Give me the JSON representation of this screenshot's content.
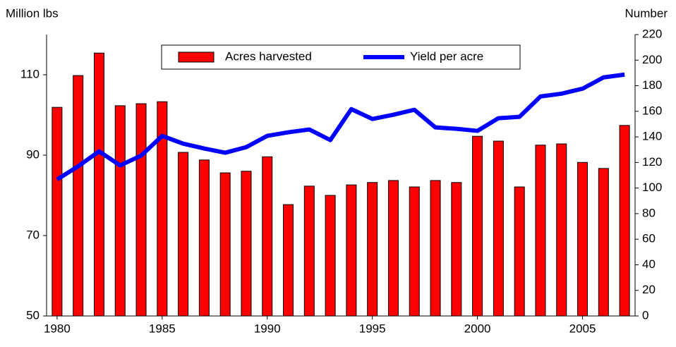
{
  "chart_data": {
    "type": "bar-line",
    "y_label": "Million lbs",
    "y2_label": "Number",
    "x": [
      1980,
      1981,
      1982,
      1983,
      1984,
      1985,
      1986,
      1987,
      1988,
      1989,
      1990,
      1991,
      1992,
      1993,
      1994,
      1995,
      1996,
      1997,
      1998,
      1999,
      2000,
      2001,
      2002,
      2003,
      2004,
      2005,
      2006,
      2007
    ],
    "xlim": [
      1979.5,
      2007.5
    ],
    "xticks": [
      1980,
      1985,
      1990,
      1995,
      2000,
      2005
    ],
    "ylim": [
      50,
      120
    ],
    "yticks": [
      50,
      70,
      90,
      110
    ],
    "y2lim": [
      0,
      220
    ],
    "y2ticks": [
      0,
      20,
      40,
      60,
      80,
      100,
      120,
      140,
      160,
      180,
      200,
      220
    ],
    "legend": "upper center",
    "series": [
      {
        "name": "Acres harvested",
        "type": "bar",
        "color": "#ff0000",
        "values": [
          101.9,
          109.8,
          115.4,
          102.3,
          102.8,
          103.3,
          90.7,
          88.8,
          85.6,
          86.0,
          89.6,
          77.7,
          82.3,
          80.0,
          82.6,
          83.2,
          83.7,
          82.1,
          83.7,
          83.2,
          94.7,
          93.5,
          82.1,
          92.5,
          92.8,
          88.2,
          86.7,
          97.4
        ]
      },
      {
        "name": "Yield per acre",
        "type": "line",
        "axis": "y2",
        "color": "#0000ff",
        "values": [
          106.7,
          117.0,
          128.7,
          117.7,
          125.4,
          140.8,
          134.7,
          130.9,
          127.6,
          132.0,
          140.8,
          143.6,
          145.8,
          137.5,
          161.7,
          154.0,
          157.3,
          161.2,
          147.4,
          146.3,
          144.7,
          154.6,
          155.7,
          171.6,
          173.8,
          177.7,
          186.5,
          188.7
        ]
      }
    ]
  }
}
